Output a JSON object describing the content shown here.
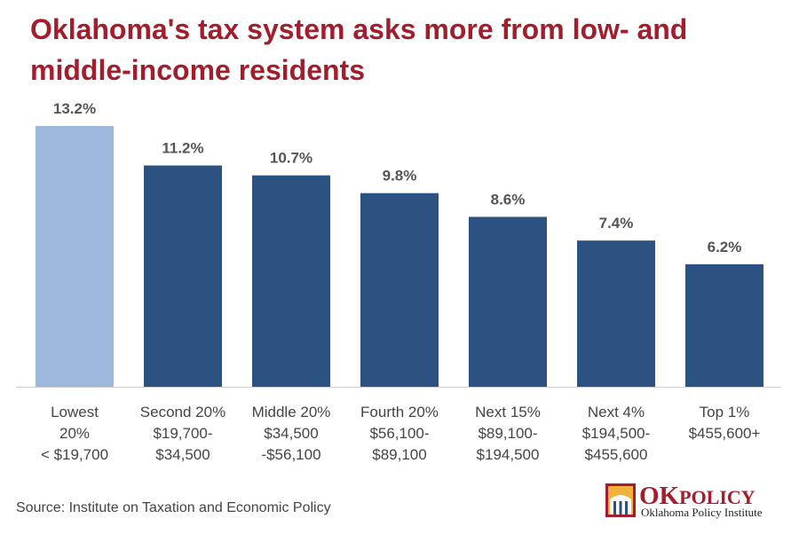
{
  "title": "Oklahoma's tax system asks more from low- and middle-income residents",
  "source": "Source: Institute on Taxation and Economic Policy",
  "logo": {
    "name_ok": "OK",
    "name_rest": "POLICY",
    "subtitle": "Oklahoma Policy Institute"
  },
  "colors": {
    "title": "#a31e2d",
    "highlight_bar": "#9db8dc",
    "bar": "#2c5281",
    "axis": "#cccccc"
  },
  "chart_data": {
    "type": "bar",
    "categories": [
      [
        "Lowest",
        "20%",
        "< $19,700"
      ],
      [
        "Second 20%",
        "$19,700-",
        "$34,500"
      ],
      [
        "Middle 20%",
        "$34,500",
        "-$56,100"
      ],
      [
        "Fourth 20%",
        "$56,100-",
        "$89,100"
      ],
      [
        "Next 15%",
        "$89,100-",
        "$194,500"
      ],
      [
        "Next 4%",
        "$194,500-",
        "$455,600"
      ],
      [
        "Top 1%",
        "$455,600+"
      ]
    ],
    "values": [
      13.2,
      11.2,
      10.7,
      9.8,
      8.6,
      7.4,
      6.2
    ],
    "value_labels": [
      "13.2%",
      "11.2%",
      "10.7%",
      "9.8%",
      "8.6%",
      "7.4%",
      "6.2%"
    ],
    "highlight_index": 0,
    "ylim": [
      0,
      13.2
    ],
    "grid": false,
    "legend": "none",
    "xlabel": "",
    "ylabel": ""
  }
}
